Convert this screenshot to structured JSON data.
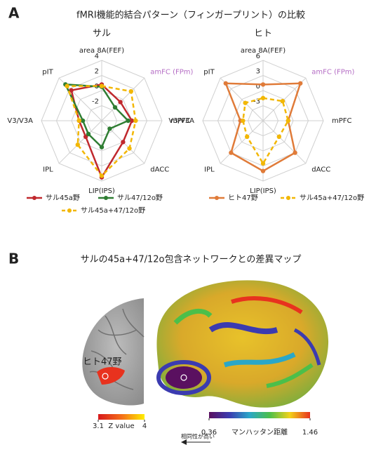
{
  "panel_a": {
    "label": "A",
    "title": "fMRI機能的結合パターン（フィンガープリント）の比較"
  },
  "chart_data": [
    {
      "type": "radar",
      "title": "サル",
      "categories": [
        "area 8A(FEF)",
        "amFC (FPm)",
        "mPFC",
        "dACC",
        "LIP(IPS)",
        "IPL",
        "V3/V3A",
        "pIT"
      ],
      "category_colors": [
        "#222222",
        "#b46cc4",
        "#222222",
        "#222222",
        "#222222",
        "#222222",
        "#222222",
        "#222222"
      ],
      "rlim": [
        -4,
        4
      ],
      "rticks": [
        -2,
        0,
        2,
        4
      ],
      "series": [
        {
          "name": "サル45a野",
          "color": "#c0282d",
          "line_style": "solid",
          "values": [
            0.8,
            -0.5,
            0,
            0,
            3.5,
            -1,
            -1,
            1.7
          ]
        },
        {
          "name": "サル47/12o野",
          "color": "#2e7d32",
          "line_style": "solid",
          "values": [
            0.5,
            -1.5,
            -0.5,
            -2.5,
            -0.5,
            -1.5,
            -1.5,
            2.8
          ]
        },
        {
          "name": "サル45a+47/12o野",
          "color": "#f2b705",
          "line_style": "dashed",
          "values": [
            0.6,
            1.5,
            0.5,
            1.2,
            3.3,
            0.5,
            -1,
            2.5
          ]
        }
      ]
    },
    {
      "type": "radar",
      "title": "ヒト",
      "categories": [
        "area 8A(FEF)",
        "amFC (FPm)",
        "mPFC",
        "dACC",
        "LIP(IPS)",
        "IPL",
        "V3/V3A",
        "pIT"
      ],
      "category_colors": [
        "#222222",
        "#b46cc4",
        "#222222",
        "#222222",
        "#222222",
        "#222222",
        "#222222",
        "#222222"
      ],
      "rlim": [
        -6,
        6
      ],
      "rticks": [
        -3,
        0,
        3,
        6
      ],
      "series": [
        {
          "name": "ヒト47野",
          "color": "#e07b39",
          "line_style": "solid",
          "values": [
            1.2,
            4.5,
            -1,
            3,
            4,
            3,
            -1.5,
            4.5
          ]
        },
        {
          "name": "サル45a+47/12o野",
          "color": "#f2b705",
          "line_style": "dashed",
          "values": [
            -1.5,
            -0.5,
            -1,
            -1.5,
            2.5,
            -1.5,
            -2,
            -1
          ]
        }
      ]
    }
  ],
  "panel_b": {
    "label": "B",
    "title": "サルの45a+47/12o包含ネットワークとの差異マップ",
    "seed_label": "ヒト47野",
    "z_colorbar": {
      "label": "Z value",
      "ticks": [
        3.1,
        4
      ]
    },
    "distance_colorbar": {
      "label": "マンハッタン距離",
      "ticks": [
        0.36,
        1.46
      ],
      "arrow_label": "相同性が高い"
    }
  }
}
